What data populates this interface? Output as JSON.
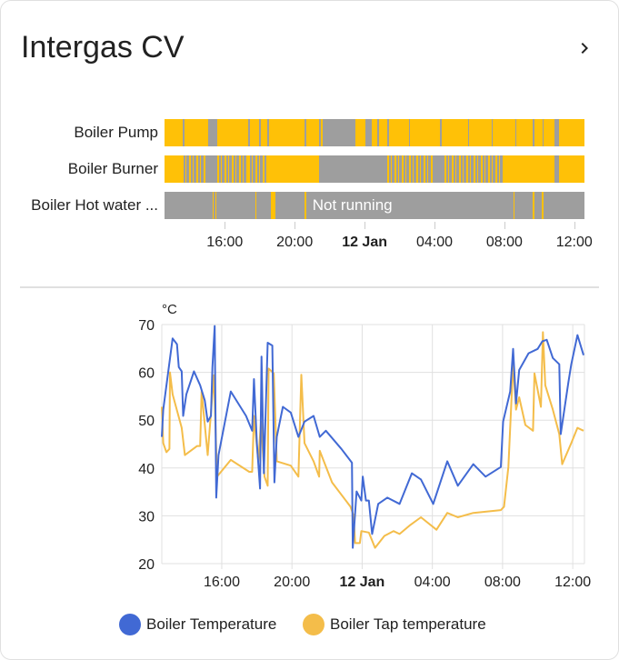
{
  "card": {
    "title": "Intergas CV",
    "more_icon": "chevron-right-icon"
  },
  "timeline": {
    "range": [
      "11 Jan 12:33",
      "12 Jan 12:35"
    ],
    "colors": {
      "on": "#ffc107",
      "off": "#9e9e9e"
    },
    "ticks": [
      {
        "label": "16:00",
        "time": "11 Jan 16:00",
        "bold": false
      },
      {
        "label": "20:00",
        "time": "11 Jan 20:00",
        "bold": false
      },
      {
        "label": "12 Jan",
        "time": "12 Jan 00:00",
        "bold": true
      },
      {
        "label": "04:00",
        "time": "12 Jan 04:00",
        "bold": false
      },
      {
        "label": "08:00",
        "time": "12 Jan 08:00",
        "bold": false
      },
      {
        "label": "12:00",
        "time": "12 Jan 12:00",
        "bold": false
      }
    ],
    "rows": [
      {
        "label": "Boiler Pump",
        "default_state": "on",
        "segments": [
          {
            "from": "11 Jan 13:36",
            "to": "11 Jan 13:40",
            "state": "off"
          },
          {
            "from": "11 Jan 15:04",
            "to": "11 Jan 15:34",
            "state": "off"
          },
          {
            "from": "11 Jan 17:21",
            "to": "11 Jan 17:24",
            "state": "off"
          },
          {
            "from": "11 Jan 17:59",
            "to": "11 Jan 18:02",
            "state": "off"
          },
          {
            "from": "11 Jan 18:26",
            "to": "11 Jan 18:29",
            "state": "off"
          },
          {
            "from": "11 Jan 20:34",
            "to": "11 Jan 20:37",
            "state": "off"
          },
          {
            "from": "11 Jan 21:24",
            "to": "11 Jan 21:27",
            "state": "off"
          },
          {
            "from": "11 Jan 21:35",
            "to": "11 Jan 23:30",
            "state": "off"
          },
          {
            "from": "12 Jan 00:04",
            "to": "12 Jan 00:24",
            "state": "off"
          },
          {
            "from": "12 Jan 00:44",
            "to": "12 Jan 00:47",
            "state": "off"
          },
          {
            "from": "12 Jan 01:18",
            "to": "12 Jan 01:21",
            "state": "off"
          },
          {
            "from": "12 Jan 02:32",
            "to": "12 Jan 02:35",
            "state": "off"
          },
          {
            "from": "12 Jan 04:20",
            "to": "12 Jan 04:23",
            "state": "off"
          },
          {
            "from": "12 Jan 05:55",
            "to": "12 Jan 05:58",
            "state": "off"
          },
          {
            "from": "12 Jan 07:16",
            "to": "12 Jan 07:19",
            "state": "off"
          },
          {
            "from": "12 Jan 08:37",
            "to": "12 Jan 08:40",
            "state": "off"
          },
          {
            "from": "12 Jan 09:38",
            "to": "12 Jan 09:41",
            "state": "off"
          },
          {
            "from": "12 Jan 10:11",
            "to": "12 Jan 10:14",
            "state": "off"
          },
          {
            "from": "12 Jan 10:52",
            "to": "12 Jan 11:08",
            "state": "off"
          }
        ]
      },
      {
        "label": "Boiler Burner",
        "default_state": "off",
        "segments": [
          {
            "from": "11 Jan 12:33",
            "to": "11 Jan 13:31",
            "state": "on"
          },
          {
            "from": "11 Jan 13:31",
            "to": "11 Jan 14:56",
            "state": "cycling"
          },
          {
            "from": "11 Jan 15:34",
            "to": "11 Jan 17:21",
            "state": "cycling"
          },
          {
            "from": "11 Jan 17:21",
            "to": "11 Jan 18:26",
            "state": "cycling"
          },
          {
            "from": "11 Jan 18:26",
            "to": "11 Jan 21:24",
            "state": "on"
          },
          {
            "from": "12 Jan 01:18",
            "to": "12 Jan 03:53",
            "state": "cycling"
          },
          {
            "from": "12 Jan 04:34",
            "to": "12 Jan 07:56",
            "state": "cycling"
          },
          {
            "from": "12 Jan 07:56",
            "to": "12 Jan 10:52",
            "state": "on"
          },
          {
            "from": "12 Jan 11:08",
            "to": "12 Jan 12:35",
            "state": "on"
          }
        ]
      },
      {
        "label": "Boiler Hot water ...",
        "default_state": "off",
        "state_label": "Not running",
        "segments": [
          {
            "from": "11 Jan 15:17",
            "to": "11 Jan 15:19",
            "state": "on"
          },
          {
            "from": "11 Jan 15:27",
            "to": "11 Jan 15:30",
            "state": "on"
          },
          {
            "from": "11 Jan 17:45",
            "to": "11 Jan 17:47",
            "state": "on"
          },
          {
            "from": "11 Jan 18:37",
            "to": "11 Jan 18:53",
            "state": "on"
          },
          {
            "from": "11 Jan 20:34",
            "to": "11 Jan 20:36",
            "state": "on"
          },
          {
            "from": "12 Jan 08:30",
            "to": "12 Jan 08:35",
            "state": "on"
          },
          {
            "from": "12 Jan 09:38",
            "to": "12 Jan 09:40",
            "state": "on"
          },
          {
            "from": "12 Jan 10:09",
            "to": "12 Jan 10:16",
            "state": "on"
          }
        ]
      }
    ]
  },
  "chart_data": {
    "type": "line",
    "ylabel": "°C",
    "ylim": [
      20,
      70
    ],
    "yticks": [
      20,
      30,
      40,
      50,
      60,
      70
    ],
    "xlim": [
      "11 Jan 12:35",
      "12 Jan 12:40"
    ],
    "xticks": [
      {
        "label": "16:00",
        "time": "11 Jan 16:00",
        "bold": false
      },
      {
        "label": "20:00",
        "time": "11 Jan 20:00",
        "bold": false
      },
      {
        "label": "12 Jan",
        "time": "12 Jan 00:00",
        "bold": true
      },
      {
        "label": "04:00",
        "time": "12 Jan 04:00",
        "bold": false
      },
      {
        "label": "08:00",
        "time": "12 Jan 08:00",
        "bold": false
      },
      {
        "label": "12:00",
        "time": "12 Jan 12:00",
        "bold": false
      }
    ],
    "grid": true,
    "legend_position": "bottom",
    "series": [
      {
        "name": "Boiler Temperature",
        "color": "#4169d4",
        "x": [
          "11 Jan 12:35",
          "11 Jan 12:40",
          "11 Jan 13:12",
          "11 Jan 13:27",
          "11 Jan 13:33",
          "11 Jan 13:43",
          "11 Jan 13:48",
          "11 Jan 13:59",
          "11 Jan 14:25",
          "11 Jan 14:46",
          "11 Jan 15:02",
          "11 Jan 15:12",
          "11 Jan 15:23",
          "11 Jan 15:28",
          "11 Jan 15:36",
          "11 Jan 15:41",
          "11 Jan 15:49",
          "11 Jan 16:31",
          "11 Jan 17:23",
          "11 Jan 17:44",
          "11 Jan 17:50",
          "11 Jan 18:00",
          "11 Jan 18:11",
          "11 Jan 18:16",
          "11 Jan 18:24",
          "11 Jan 18:37",
          "11 Jan 18:53",
          "11 Jan 19:00",
          "11 Jan 19:08",
          "11 Jan 19:29",
          "11 Jan 19:56",
          "11 Jan 20:22",
          "11 Jan 20:43",
          "11 Jan 21:14",
          "11 Jan 21:35",
          "11 Jan 21:56",
          "11 Jan 22:49",
          "11 Jan 23:25",
          "11 Jan 23:28",
          "11 Jan 23:41",
          "11 Jan 23:57",
          "12 Jan 00:02",
          "12 Jan 00:13",
          "12 Jan 00:23",
          "12 Jan 00:34",
          "12 Jan 00:55",
          "12 Jan 01:26",
          "12 Jan 02:08",
          "12 Jan 02:50",
          "12 Jan 03:21",
          "12 Jan 04:03",
          "12 Jan 04:51",
          "12 Jan 05:27",
          "12 Jan 06:20",
          "12 Jan 07:02",
          "12 Jan 07:54",
          "12 Jan 08:02",
          "12 Jan 08:26",
          "12 Jan 08:36",
          "12 Jan 08:46",
          "12 Jan 08:57",
          "12 Jan 09:29",
          "12 Jan 10:00",
          "12 Jan 10:16",
          "12 Jan 10:31",
          "12 Jan 10:52",
          "12 Jan 11:14",
          "12 Jan 11:19",
          "12 Jan 11:45",
          "12 Jan 11:55",
          "12 Jan 12:16",
          "12 Jan 12:37"
        ],
        "y": [
          46.5,
          52.2,
          67.1,
          65.9,
          61.1,
          60.2,
          50.9,
          55.4,
          60.2,
          57.3,
          54.1,
          49.7,
          50.9,
          61.1,
          69.7,
          33.8,
          42.7,
          56,
          50.9,
          47.8,
          58.6,
          45.2,
          35.7,
          63.3,
          38.9,
          66.2,
          65.6,
          37,
          46.5,
          52.8,
          51.6,
          46.5,
          49.7,
          50.9,
          46.5,
          47.8,
          44,
          41.1,
          23.3,
          35.1,
          33.2,
          38.2,
          33.2,
          33.2,
          26.2,
          32.5,
          33.8,
          32.5,
          38.9,
          37.6,
          32.5,
          41.4,
          36.3,
          40.8,
          38.2,
          40.2,
          49.7,
          56,
          64.9,
          53.5,
          60.5,
          64,
          64.9,
          66.5,
          66.8,
          63,
          61.7,
          47.1,
          57.9,
          61.7,
          67.8,
          63.6
        ]
      },
      {
        "name": "Boiler Tap temperature",
        "color": "#f4bd4a",
        "x": [
          "11 Jan 12:35",
          "11 Jan 12:40",
          "11 Jan 12:51",
          "11 Jan 13:01",
          "11 Jan 13:03",
          "11 Jan 13:12",
          "11 Jan 13:43",
          "11 Jan 13:54",
          "11 Jan 14:36",
          "11 Jan 14:46",
          "11 Jan 14:51",
          "11 Jan 15:12",
          "11 Jan 15:23",
          "11 Jan 15:33",
          "11 Jan 15:44",
          "11 Jan 16:31",
          "11 Jan 17:34",
          "11 Jan 17:44",
          "11 Jan 17:50",
          "11 Jan 18:05",
          "11 Jan 18:14",
          "11 Jan 18:26",
          "11 Jan 18:37",
          "11 Jan 18:40",
          "11 Jan 18:58",
          "11 Jan 19:08",
          "11 Jan 19:56",
          "11 Jan 20:22",
          "11 Jan 20:32",
          "11 Jan 20:43",
          "11 Jan 21:14",
          "11 Jan 21:33",
          "11 Jan 21:35",
          "11 Jan 22:17",
          "11 Jan 23:20",
          "11 Jan 23:31",
          "11 Jan 23:36",
          "11 Jan 23:52",
          "11 Jan 23:57",
          "12 Jan 00:23",
          "12 Jan 00:44",
          "12 Jan 01:16",
          "12 Jan 01:47",
          "12 Jan 02:08",
          "12 Jan 02:45",
          "12 Jan 03:21",
          "12 Jan 04:14",
          "12 Jan 04:51",
          "12 Jan 05:27",
          "12 Jan 06:20",
          "12 Jan 07:54",
          "12 Jan 08:05",
          "12 Jan 08:20",
          "12 Jan 08:36",
          "12 Jan 08:46",
          "12 Jan 08:57",
          "12 Jan 09:18",
          "12 Jan 09:44",
          "12 Jan 09:49",
          "12 Jan 10:11",
          "12 Jan 10:18",
          "12 Jan 10:26",
          "12 Jan 10:52",
          "12 Jan 11:14",
          "12 Jan 11:24",
          "12 Jan 11:55",
          "12 Jan 12:16",
          "12 Jan 12:37"
        ],
        "y": [
          52.8,
          45.2,
          43.3,
          44,
          60,
          55.4,
          48.4,
          42.7,
          44.6,
          44.6,
          56,
          42.7,
          51.6,
          59.4,
          38.2,
          41.7,
          39.2,
          39.2,
          50.9,
          41.4,
          49.7,
          38.2,
          36.3,
          60.8,
          59.8,
          41.4,
          40.5,
          38.2,
          59.5,
          45.2,
          41.4,
          38.2,
          43.6,
          37,
          31.9,
          30,
          24.3,
          24.3,
          26.8,
          26.5,
          23.3,
          25.8,
          26.8,
          26.2,
          28.1,
          29.7,
          27.1,
          30.6,
          29.7,
          30.6,
          31.2,
          31.9,
          40.2,
          61.7,
          52.2,
          54.8,
          49,
          47.8,
          59.8,
          52.8,
          68.4,
          57.3,
          52.2,
          47.1,
          40.8,
          45.2,
          48.4,
          47.8
        ]
      }
    ]
  }
}
